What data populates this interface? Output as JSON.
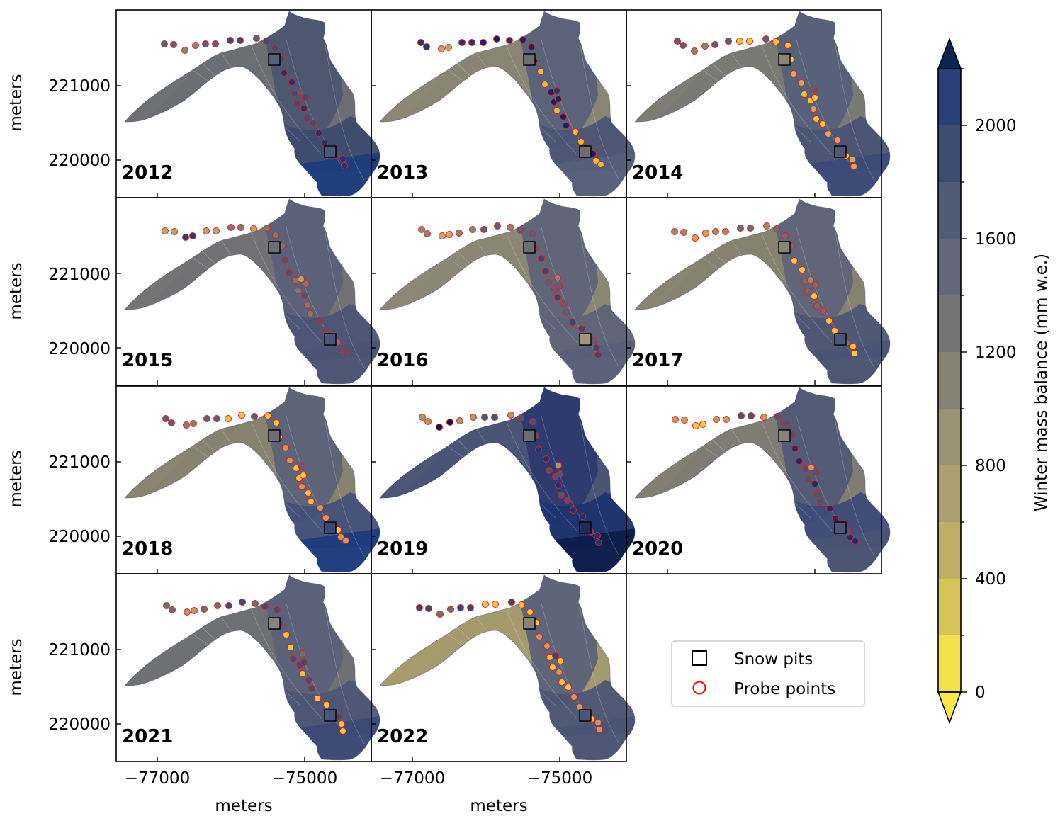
{
  "figure": {
    "axis_unit_label": "meters",
    "x_tick_labels": [
      "−77000",
      "−75000"
    ],
    "y_tick_labels": [
      "221000",
      "220000"
    ]
  },
  "panels": [
    {
      "year": "2012",
      "zone_colors": [
        "#a89e74",
        "#6c6e73",
        "#4c5570",
        "#3d4a6e",
        "#1b3d7a"
      ],
      "pit_colors": [
        "#55607a",
        "#4a567a"
      ],
      "probe_colors": [
        "#8a8474",
        "#5a607a",
        "#3e4a78",
        "#22326e"
      ]
    },
    {
      "year": "2013",
      "zone_colors": [
        "#c8b65e",
        "#8a8474",
        "#5a607a",
        "#4a5474",
        "#55607a"
      ],
      "pit_colors": [
        "#6c6e73",
        "#6c6e73"
      ],
      "probe_colors": [
        "#e0c23a",
        "#b8a86a",
        "#2a3570",
        "#162266"
      ]
    },
    {
      "year": "2014",
      "zone_colors": [
        "#b4a86e",
        "#7a7a74",
        "#55607a",
        "#4a5474",
        "#3a4a78"
      ],
      "pit_colors": [
        "#888478",
        "#4e5876"
      ],
      "probe_colors": [
        "#f2c83a",
        "#c8ac64",
        "#8a8474",
        "#5a607a"
      ]
    },
    {
      "year": "2015",
      "zone_colors": [
        "#ada172",
        "#727275",
        "#5a6078",
        "#4b5474",
        "#4b5474"
      ],
      "pit_colors": [
        "#6c6e73",
        "#4a567a"
      ],
      "probe_colors": [
        "#b8a86a",
        "#7a7a74",
        "#4a5474",
        "#2e3c70"
      ]
    },
    {
      "year": "2016",
      "zone_colors": [
        "#b2a46c",
        "#8c8674",
        "#5e6378",
        "#5e6378",
        "#595f79"
      ],
      "pit_colors": [
        "#6c6e73",
        "#a0967a"
      ],
      "probe_colors": [
        "#c8ac64",
        "#8a8474",
        "#5a607a",
        "#3a4672"
      ]
    },
    {
      "year": "2017",
      "zone_colors": [
        "#bcae66",
        "#86826f",
        "#5e6378",
        "#4c5674",
        "#4a5474"
      ],
      "pit_colors": [
        "#8a8474",
        "#4a567a"
      ],
      "probe_colors": [
        "#f7c540",
        "#d6a25a",
        "#9a8c6c",
        "#6c6e73"
      ]
    },
    {
      "year": "2018",
      "zone_colors": [
        "#c4b460",
        "#87826f",
        "#5c6278",
        "#44507a",
        "#1c3c80"
      ],
      "pit_colors": [
        "#6c6e73",
        "#3a4a78"
      ],
      "probe_colors": [
        "#f2c440",
        "#c89c5c",
        "#8a7c6c",
        "#5a607a"
      ]
    },
    {
      "year": "2019",
      "zone_colors": [
        "#8c8674",
        "#4a5474",
        "#2c3a6e",
        "#1c3470",
        "#0c1e4c"
      ],
      "pit_colors": [
        "#6c6e73",
        "#1c2c5c"
      ],
      "probe_colors": [
        "#a89a6a",
        "#4a5474",
        "#22326e",
        "#0c1a4a"
      ]
    },
    {
      "year": "2020",
      "zone_colors": [
        "#d0bc58",
        "#7e7c73",
        "#525a76",
        "#3e4c78",
        "#4a5474"
      ],
      "pit_colors": [
        "#888478",
        "#4a567a"
      ],
      "probe_colors": [
        "#f5c840",
        "#c89c5c",
        "#4a5474",
        "#1c2c6c"
      ]
    },
    {
      "year": "2021",
      "zone_colors": [
        "#9a9272",
        "#6e7074",
        "#5a6078",
        "#4c5674",
        "#3c4a78"
      ],
      "pit_colors": [
        "#888478",
        "#4a567a"
      ],
      "probe_colors": [
        "#f2c440",
        "#b89c64",
        "#6c6e73",
        "#3e4a78"
      ]
    },
    {
      "year": "2022",
      "zone_colors": [
        "#c6b45e",
        "#a49a6e",
        "#5c6278",
        "#4c5674",
        "#4a5474"
      ],
      "pit_colors": [
        "#888478",
        "#4a567a"
      ],
      "probe_colors": [
        "#f7c540",
        "#b8a06a",
        "#6c6e73",
        "#3a4672"
      ]
    }
  ],
  "legend": {
    "snow_pits_label": "Snow pits",
    "probe_points_label": "Probe points"
  },
  "colorbar": {
    "title": "Winter mass balance (mm w.e.)",
    "range": [
      0,
      2200
    ],
    "extend": "both",
    "tick_labels": [
      "0",
      "400",
      "800",
      "1200",
      "1600",
      "2000"
    ],
    "tick_values": [
      0,
      400,
      800,
      1200,
      1600,
      2000
    ],
    "levels": [
      0,
      200,
      400,
      600,
      800,
      1000,
      1200,
      1400,
      1600,
      1800,
      2000,
      2200
    ],
    "colors": [
      "#f3e04a",
      "#d8c456",
      "#c0ae64",
      "#aca06e",
      "#9a9472",
      "#868274",
      "#747474",
      "#62677a",
      "#505b78",
      "#3e4b72",
      "#28407a",
      "#10306c"
    ],
    "under_color": "#fde84a",
    "over_color": "#0a2550"
  }
}
